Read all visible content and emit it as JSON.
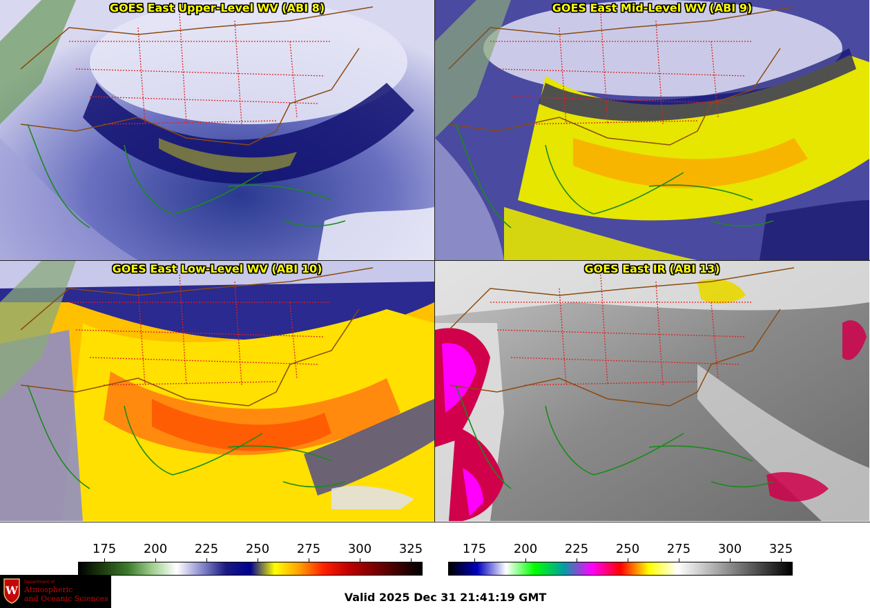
{
  "panels": [
    {
      "title": "GOES East Upper-Level WV (ABI 8)",
      "palette": "wv-upper"
    },
    {
      "title": "GOES East Mid-Level WV (ABI 9)",
      "palette": "wv-mid"
    },
    {
      "title": "GOES East Low-Level WV (ABI 10)",
      "palette": "wv-low"
    },
    {
      "title": "GOES East IR (ABI 13)",
      "palette": "ir"
    }
  ],
  "colorbars": {
    "wv": {
      "ticks": [
        "175",
        "200",
        "225",
        "250",
        "275",
        "300",
        "325"
      ],
      "stops": [
        "#000000",
        "#1f3d10",
        "#3c7a2b",
        "#9fcf8f",
        "#ffffff",
        "#8c8cd0",
        "#1a1a80",
        "#000090",
        "#ffff00",
        "#ffa000",
        "#ff2000",
        "#c00000",
        "#800000",
        "#400000",
        "#000000"
      ]
    },
    "ir": {
      "ticks": [
        "175",
        "200",
        "225",
        "250",
        "275",
        "300",
        "325"
      ],
      "stops": [
        "#000000",
        "#0000c0",
        "#ffffff",
        "#00ff00",
        "#00a0a0",
        "#ff00ff",
        "#ff0000",
        "#ffff00",
        "#ffffff",
        "#c0c0c0",
        "#808080",
        "#404040",
        "#000000"
      ]
    }
  },
  "logo": {
    "dept": "Department of",
    "line1": "Atmospheric",
    "line2": "and Oceanic Sciences"
  },
  "valid_time": "Valid 2025 Dec 31 21:41:19 GMT"
}
